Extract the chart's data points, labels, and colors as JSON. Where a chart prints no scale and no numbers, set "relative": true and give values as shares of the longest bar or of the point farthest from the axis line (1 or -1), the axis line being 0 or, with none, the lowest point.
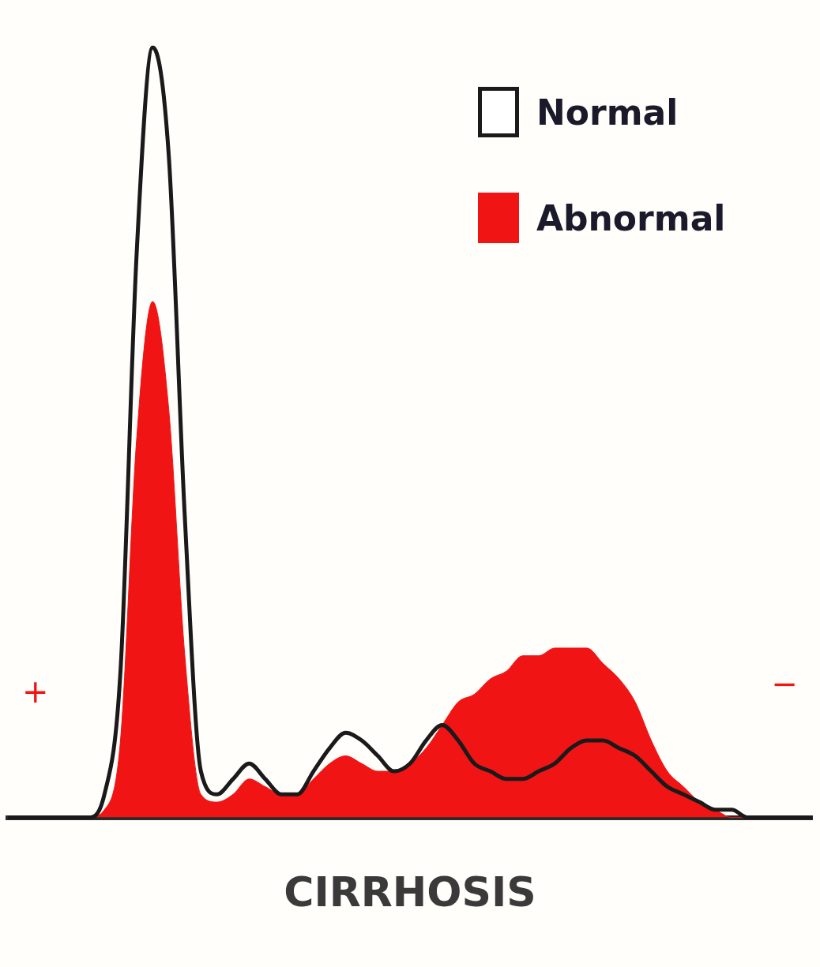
{
  "chart_data": {
    "type": "line",
    "relative": true,
    "xlabel": "CIRRHOSIS",
    "legend": "top right",
    "annotations": [
      "+",
      "−"
    ],
    "categories": [
      null,
      null,
      null,
      null,
      null,
      null,
      null,
      null,
      null,
      null,
      null,
      null,
      null,
      null,
      null,
      null,
      null,
      null,
      null,
      null,
      null,
      null,
      null,
      null,
      null,
      null,
      null,
      null,
      null,
      null,
      null,
      null,
      null,
      null,
      null,
      null,
      null,
      null,
      null,
      null,
      null,
      null,
      null,
      null,
      null,
      null,
      null,
      null,
      null,
      null,
      null
    ],
    "series": [
      {
        "name": "Normal",
        "type": "line",
        "color": "#1a1a1a",
        "values": [
          0,
          0,
          0,
          0,
          0,
          0,
          0.03,
          0.19,
          0.73,
          1,
          0.86,
          0.39,
          0.06,
          0.03,
          0.05,
          0.07,
          0.05,
          0.03,
          0.03,
          0.06,
          0.09,
          0.11,
          0.1,
          0.08,
          0.06,
          0.07,
          0.1,
          0.12,
          0.1,
          0.07,
          0.06,
          0.05,
          0.05,
          0.06,
          0.07,
          0.09,
          0.1,
          0.1,
          0.09,
          0.08,
          0.06,
          0.04,
          0.03,
          0.02,
          0.01,
          0.01,
          0,
          0,
          0,
          0,
          0
        ]
      },
      {
        "name": "Abnormal",
        "type": "area",
        "color": "#f01414",
        "values": [
          0,
          0,
          0,
          0,
          0,
          0,
          0.01,
          0.1,
          0.49,
          0.67,
          0.53,
          0.21,
          0.03,
          0.02,
          0.03,
          0.05,
          0.04,
          0.03,
          0.03,
          0.05,
          0.07,
          0.08,
          0.07,
          0.06,
          0.06,
          0.07,
          0.09,
          0.12,
          0.15,
          0.16,
          0.18,
          0.19,
          0.21,
          0.21,
          0.22,
          0.22,
          0.22,
          0.2,
          0.18,
          0.15,
          0.1,
          0.06,
          0.04,
          0.02,
          0.01,
          0,
          0,
          0,
          0,
          0,
          0
        ]
      }
    ]
  }
}
